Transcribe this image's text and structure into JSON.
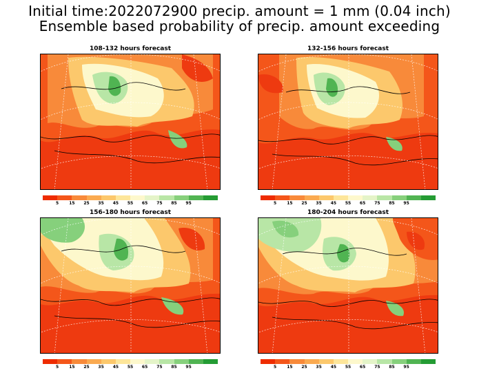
{
  "header": {
    "line1": "Initial time:2022072900 precip. amount = 1 mm (0.04 inch)",
    "line2": "Ensemble based probability of precip. amount exceeding"
  },
  "panels": [
    {
      "title": "108-132 hours forecast"
    },
    {
      "title": "132-156 hours forecast"
    },
    {
      "title": "156-180 hours forecast"
    },
    {
      "title": "180-204 hours forecast"
    }
  ],
  "colorbar": {
    "colors": [
      "#ee2c00",
      "#f4561a",
      "#f88a3a",
      "#faaa50",
      "#fcc86c",
      "#fde69a",
      "#fdf8cc",
      "#e4f4c8",
      "#b8e6a6",
      "#86d07c",
      "#50b452",
      "#249c34"
    ],
    "labels": [
      "5",
      "15",
      "25",
      "35",
      "45",
      "55",
      "65",
      "75",
      "85",
      "95"
    ]
  }
}
